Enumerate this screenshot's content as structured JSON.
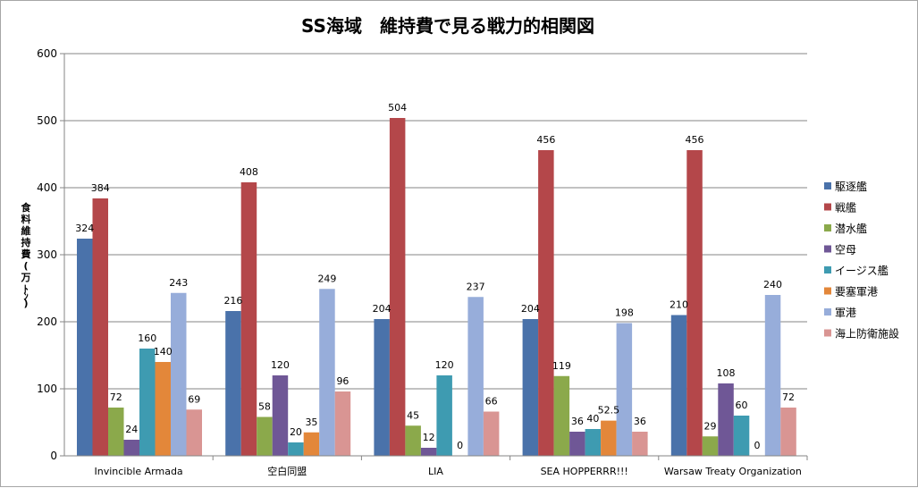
{
  "chart_data": {
    "type": "bar",
    "title": "SS海域　維持費で見る戦力的相関図",
    "ylabel": "食料維持費(万ﾄﾝ)",
    "xlabel": "",
    "ylim": [
      0,
      600
    ],
    "yticks": [
      0,
      100,
      200,
      300,
      400,
      500,
      600
    ],
    "grid": true,
    "legend_position": "right",
    "categories": [
      "Invincible Armada",
      "空白同盟",
      "LIA",
      "SEA HOPPERRR!!!",
      "Warsaw Treaty Organization"
    ],
    "series": [
      {
        "name": "駆逐艦",
        "color": "#4a72aa",
        "values": [
          324,
          216,
          204,
          204,
          210
        ]
      },
      {
        "name": "戦艦",
        "color": "#b4474a",
        "values": [
          384,
          408,
          504,
          456,
          456
        ]
      },
      {
        "name": "潜水艦",
        "color": "#8ba94b",
        "values": [
          72,
          58,
          45,
          119,
          29
        ]
      },
      {
        "name": "空母",
        "color": "#6f5796",
        "values": [
          24,
          120,
          12,
          36,
          108
        ]
      },
      {
        "name": "イージス艦",
        "color": "#3e9bb1",
        "values": [
          160,
          20,
          120,
          40,
          60
        ]
      },
      {
        "name": "要塞軍港",
        "color": "#e3873a",
        "values": [
          140,
          35,
          0,
          52.5,
          0
        ]
      },
      {
        "name": "軍港",
        "color": "#97adda",
        "values": [
          243,
          249,
          237,
          198,
          240
        ]
      },
      {
        "name": "海上防衛施設",
        "color": "#d99593",
        "values": [
          69,
          96,
          66,
          36,
          72
        ]
      }
    ]
  }
}
